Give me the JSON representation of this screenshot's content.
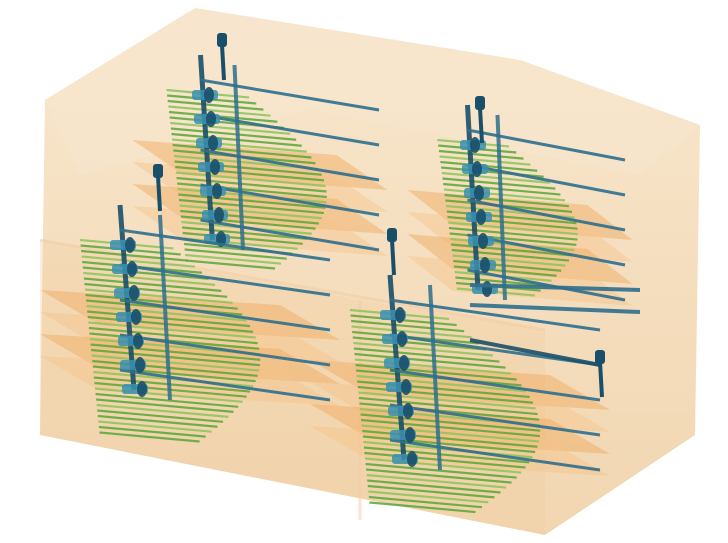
{
  "image": {
    "subject": "volume-rendered-ct-scan",
    "colors": {
      "background": "#ffffff",
      "shell_outer": "#f3d8b0",
      "shell_inner": "#eec189",
      "tray": "#f0a85a",
      "tray_light": "#f6c38a",
      "fiber_green": "#58a838",
      "fiber_green_light": "#8cc45c",
      "wire_blue": "#2e6f8e",
      "wire_dark": "#1a4f6a",
      "node_teal": "#3a8fb0"
    }
  }
}
